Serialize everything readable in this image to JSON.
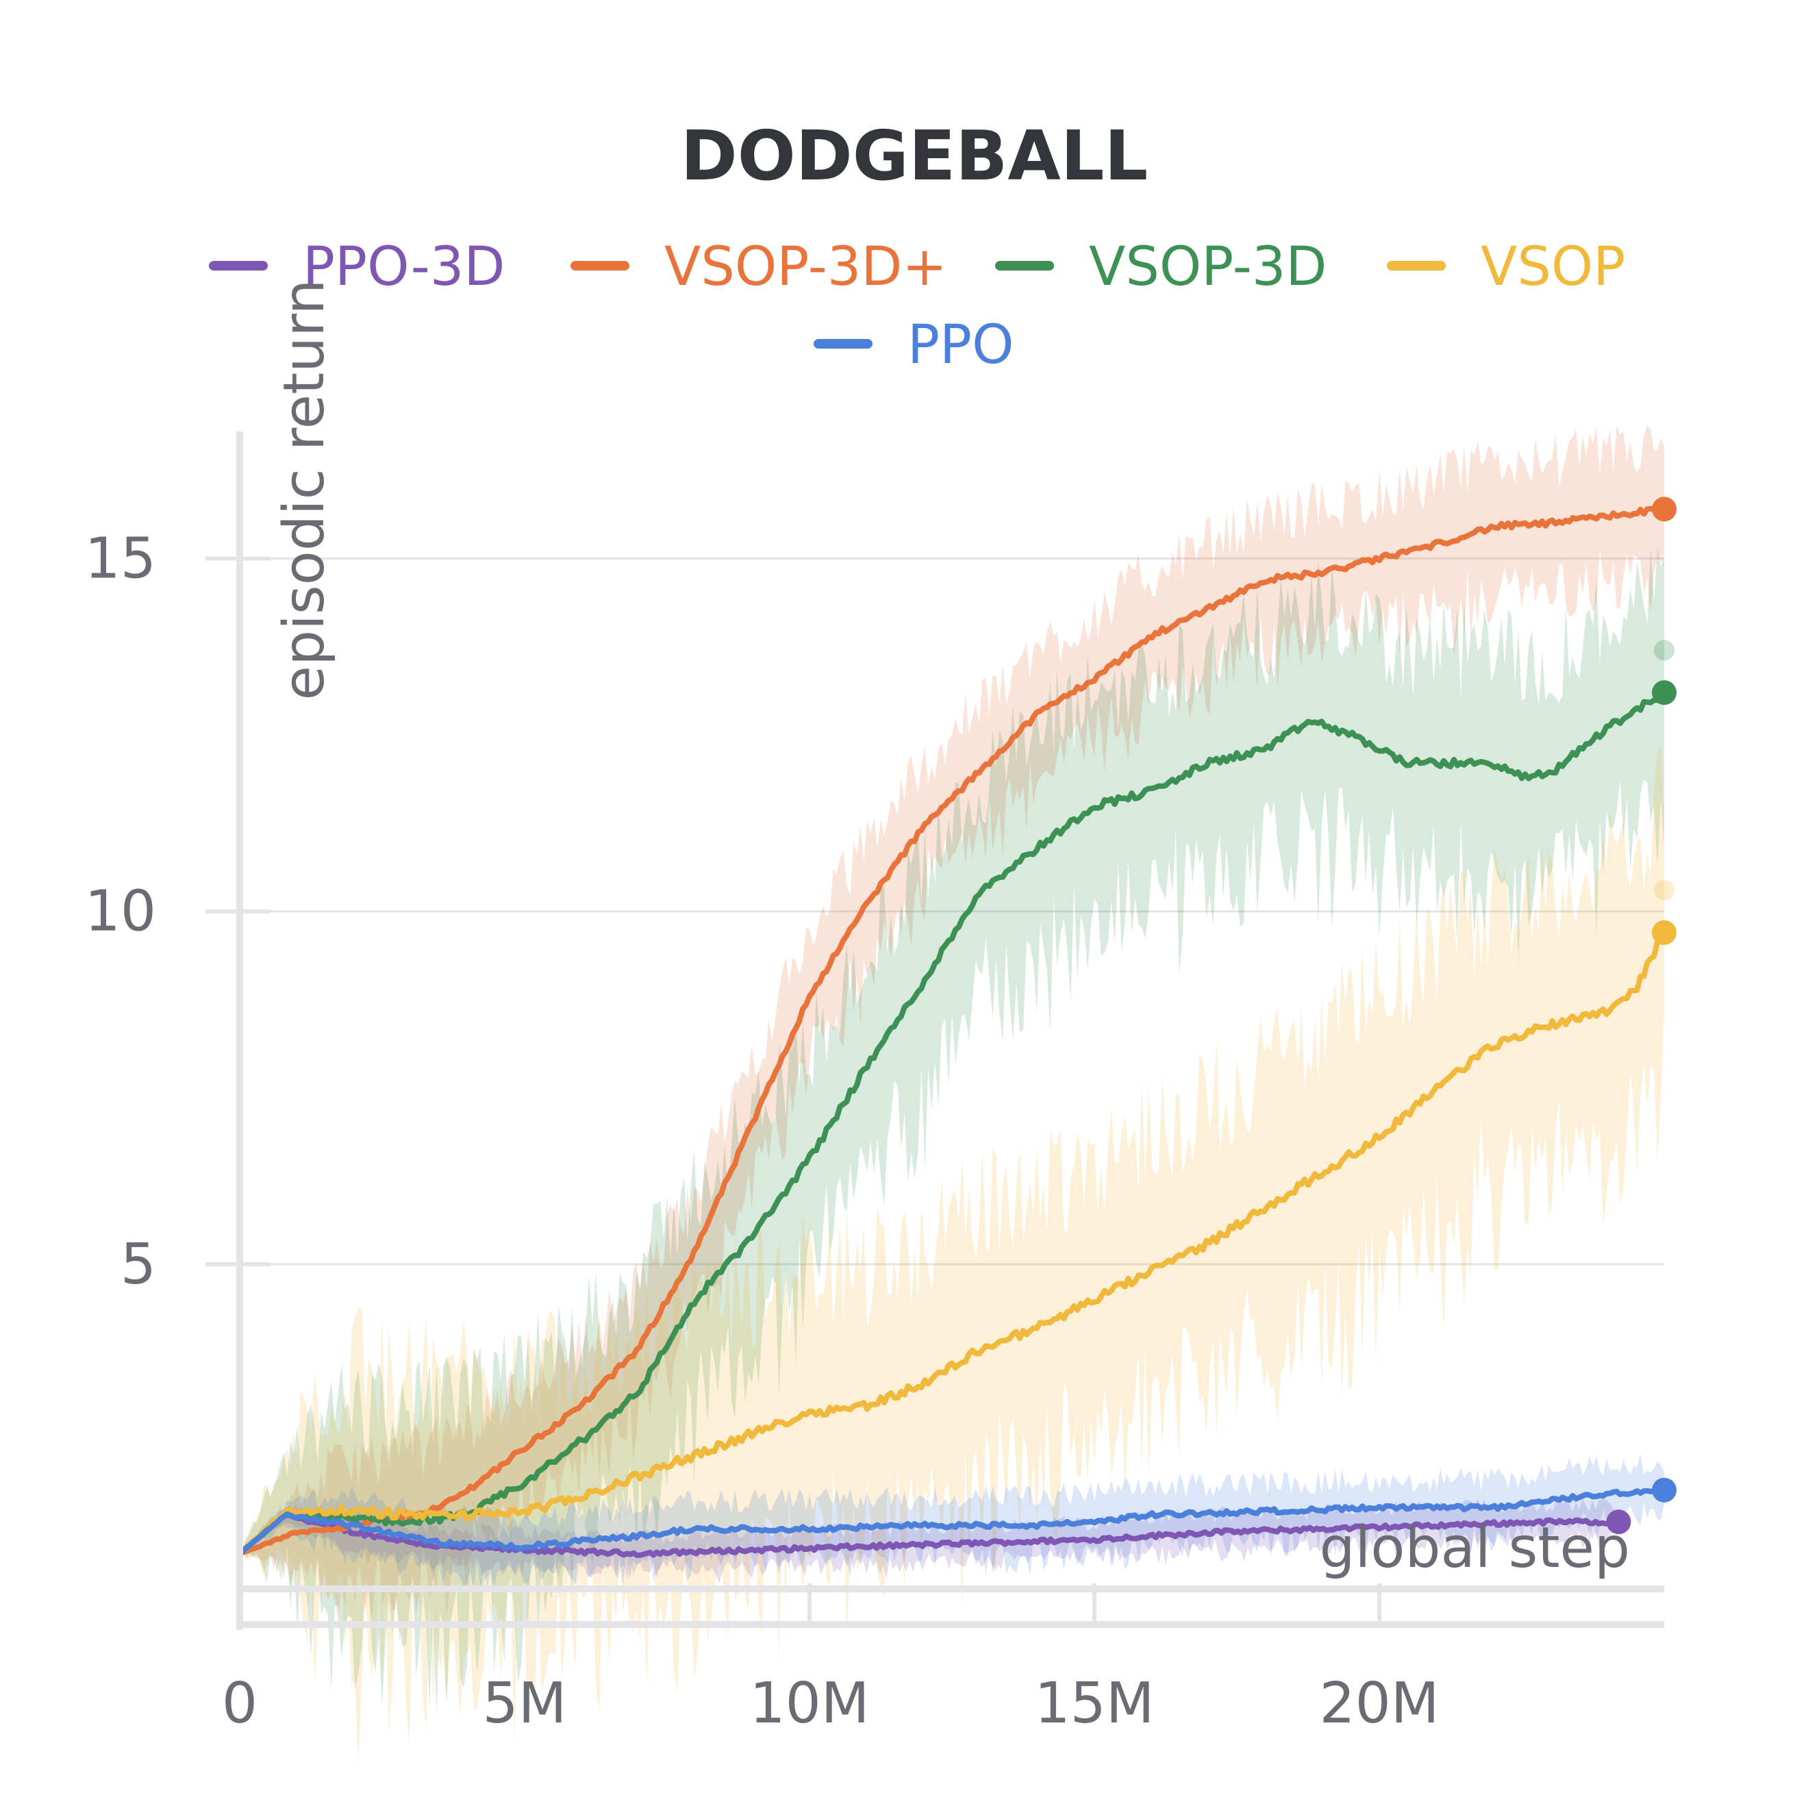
{
  "chart_data": {
    "type": "line",
    "title": "DODGEBALL",
    "xlabel": "global step",
    "ylabel": "episodic return",
    "xlim": [
      0,
      25000000
    ],
    "ylim": [
      0.4,
      16.8
    ],
    "x_ticks": [
      {
        "value": 0,
        "label": "0"
      },
      {
        "value": 5000000,
        "label": "5M"
      },
      {
        "value": 10000000,
        "label": "10M"
      },
      {
        "value": 15000000,
        "label": "15M"
      },
      {
        "value": 20000000,
        "label": "20M"
      }
    ],
    "y_ticks": [
      {
        "value": 5,
        "label": "5"
      },
      {
        "value": 10,
        "label": "10"
      },
      {
        "value": 15,
        "label": "15"
      }
    ],
    "grid": true,
    "legend_position": "top-center",
    "series": [
      {
        "name": "PPO-3D",
        "color": "#7e57b5",
        "x": [
          0,
          0.8,
          2,
          3.5,
          5,
          7,
          9,
          11,
          13,
          15,
          17,
          19,
          21,
          23,
          24.2
        ],
        "y": [
          0.9,
          1.45,
          1.2,
          1.0,
          0.95,
          0.9,
          0.95,
          1.0,
          1.05,
          1.1,
          1.2,
          1.25,
          1.3,
          1.35,
          1.35
        ],
        "band": 0.25,
        "end_marker": true
      },
      {
        "name": "VSOP-3D+",
        "color": "#e8743b",
        "x": [
          0,
          1,
          2,
          3,
          3.5,
          4,
          5,
          6,
          7,
          8,
          9,
          10,
          11,
          12,
          13,
          14,
          15,
          16,
          17,
          18,
          19,
          20,
          21,
          22,
          23,
          24,
          25
        ],
        "y": [
          0.9,
          1.2,
          1.3,
          1.45,
          1.55,
          1.8,
          2.4,
          3.0,
          3.8,
          5.2,
          7.0,
          8.8,
          10.1,
          11.2,
          12.0,
          12.8,
          13.3,
          13.9,
          14.3,
          14.7,
          14.8,
          15.0,
          15.2,
          15.45,
          15.5,
          15.6,
          15.7
        ],
        "band": 0.9,
        "end_marker": true
      },
      {
        "name": "VSOP-3D",
        "color": "#3d9155",
        "x": [
          0,
          0.8,
          2,
          3,
          4,
          5,
          6,
          7,
          8,
          9,
          10,
          11,
          12,
          13,
          14,
          15,
          16,
          17,
          18,
          18.8,
          19.5,
          20.5,
          21,
          22,
          22.5,
          23,
          24,
          25
        ],
        "y": [
          0.9,
          1.45,
          1.4,
          1.35,
          1.45,
          1.9,
          2.5,
          3.2,
          4.5,
          5.4,
          6.5,
          7.8,
          9.0,
          10.3,
          10.9,
          11.5,
          11.7,
          12.1,
          12.3,
          12.7,
          12.5,
          12.1,
          12.1,
          12.1,
          11.9,
          11.95,
          12.6,
          13.1
        ],
        "band": 1.6,
        "ghost_end": 13.7,
        "end_marker": true
      },
      {
        "name": "VSOP",
        "color": "#f0b93c",
        "x": [
          0,
          0.8,
          2,
          3,
          4,
          5,
          6,
          7,
          8,
          9,
          10,
          11,
          12,
          13,
          14,
          15,
          16,
          17,
          18,
          19,
          20,
          21,
          22,
          23,
          24,
          24.5,
          25
        ],
        "y": [
          0.9,
          1.5,
          1.5,
          1.45,
          1.45,
          1.5,
          1.7,
          2.0,
          2.3,
          2.6,
          2.9,
          3.0,
          3.3,
          3.8,
          4.1,
          4.5,
          4.9,
          5.3,
          5.8,
          6.3,
          6.8,
          7.5,
          8.1,
          8.4,
          8.6,
          8.9,
          9.7
        ],
        "band": 2.0,
        "ghost_end": 10.3,
        "end_marker": true
      },
      {
        "name": "PPO",
        "color": "#4a80dc",
        "x": [
          0,
          0.8,
          2,
          3.5,
          5,
          7,
          8,
          10,
          12,
          14,
          15,
          16,
          18,
          20,
          22,
          23,
          24,
          25
        ],
        "y": [
          0.9,
          1.45,
          1.3,
          1.05,
          1.0,
          1.15,
          1.25,
          1.25,
          1.3,
          1.3,
          1.35,
          1.45,
          1.5,
          1.55,
          1.55,
          1.65,
          1.75,
          1.8
        ],
        "band": 0.4,
        "end_marker": true
      }
    ]
  }
}
